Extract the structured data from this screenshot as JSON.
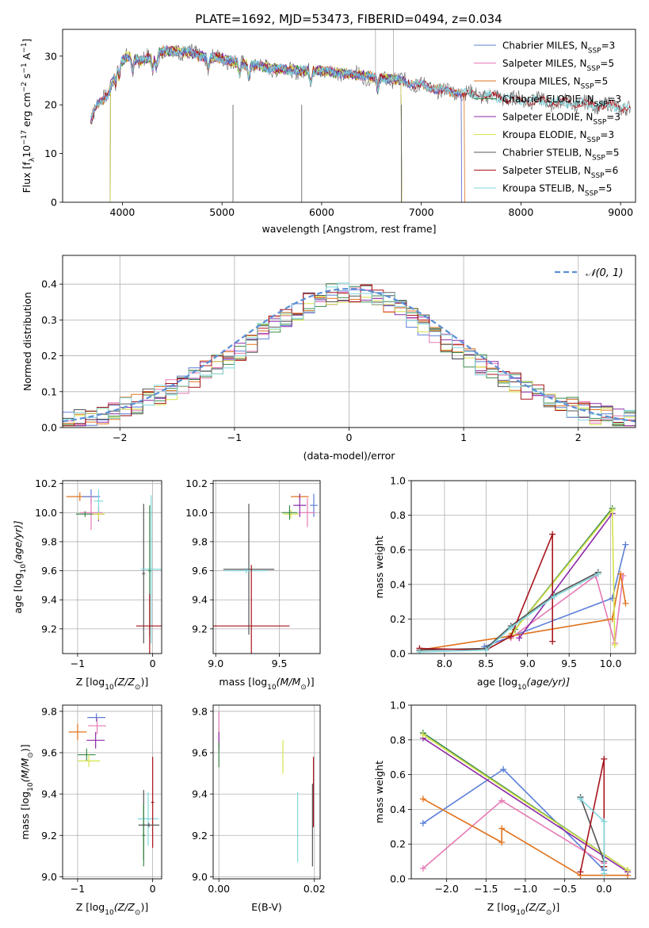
{
  "figure_title": "PLATE=1692, MJD=53473, FIBERID=0494, z=0.034",
  "colors": {
    "chabrier_miles": "#5b7fd6",
    "salpeter_miles": "#e67ab5",
    "kroupa_miles": "#e0721c",
    "chabrier_elodie": "#3a8a4a",
    "salpeter_elodie": "#8e2aa8",
    "kroupa_elodie": "#d6e24a",
    "chabrier_stelib": "#555555",
    "salpeter_stelib": "#a8141c",
    "kroupa_stelib": "#7fd6dc",
    "normal_curve": "#5b8fd6",
    "grid": "#b0b0b0"
  },
  "chart_data": [
    {
      "id": "spectrum",
      "type": "line",
      "title": "PLATE=1692, MJD=53473, FIBERID=0494, z=0.034",
      "xlabel": "wavelength [Angstrom, rest frame]",
      "ylabel_main": "Flux [f",
      "ylabel_sub": "λ",
      "ylabel_mid": "10",
      "ylabel_sup1": "−17",
      "ylabel_rest": " erg cm",
      "ylabel_sup2": "−2",
      "ylabel_s": " s",
      "ylabel_sup3": "−1",
      "ylabel_a": " A",
      "ylabel_sup4": "−1",
      "ylabel_end": "]",
      "xlim": [
        3400,
        9150
      ],
      "ylim": [
        0,
        35.5
      ],
      "xticks": [
        4000,
        5000,
        6000,
        7000,
        8000,
        9000
      ],
      "yticks": [
        0,
        10,
        20,
        30
      ],
      "grid": false,
      "legend_placement": "top-right",
      "legend": [
        {
          "pre": "Chabrier MILES, N",
          "sub": "SSP",
          "post": "=3",
          "color": "#5b7fd6"
        },
        {
          "pre": "Salpeter MILES, N",
          "sub": "SSP",
          "post": "=5",
          "color": "#e67ab5"
        },
        {
          "pre": "Kroupa MILES, N",
          "sub": "SSP",
          "post": "=5",
          "color": "#e0721c"
        },
        {
          "pre": "Chabrier ELODIE, N",
          "sub": "SSP",
          "post": "=3",
          "color": "#3a8a4a"
        },
        {
          "pre": "Salpeter ELODIE, N",
          "sub": "SSP",
          "post": "=3",
          "color": "#8e2aa8"
        },
        {
          "pre": "Kroupa ELODIE, N",
          "sub": "SSP",
          "post": "=3",
          "color": "#d6e24a"
        },
        {
          "pre": "Chabrier STELIB, N",
          "sub": "SSP",
          "post": "=5",
          "color": "#555555"
        },
        {
          "pre": "Salpeter STELIB, N",
          "sub": "SSP",
          "post": "=6",
          "color": "#a8141c"
        },
        {
          "pre": "Kroupa STELIB, N",
          "sub": "SSP",
          "post": "=5",
          "color": "#7fd6dc"
        }
      ],
      "continuum_points": [
        [
          3680,
          17
        ],
        [
          3750,
          20
        ],
        [
          3850,
          22
        ],
        [
          3950,
          28
        ],
        [
          4050,
          30
        ],
        [
          4200,
          29
        ],
        [
          4400,
          31
        ],
        [
          4600,
          31
        ],
        [
          4800,
          30
        ],
        [
          5000,
          29.5
        ],
        [
          5200,
          28.5
        ],
        [
          5500,
          27.5
        ],
        [
          5800,
          27
        ],
        [
          6000,
          27
        ],
        [
          6200,
          26.5
        ],
        [
          6500,
          25.8
        ],
        [
          6800,
          25
        ],
        [
          7000,
          24
        ],
        [
          7200,
          23
        ],
        [
          7400,
          22.5
        ],
        [
          7600,
          22
        ],
        [
          7800,
          21.5
        ],
        [
          8000,
          21
        ],
        [
          8200,
          20.8
        ],
        [
          8400,
          20.5
        ],
        [
          8600,
          20.2
        ],
        [
          8800,
          20
        ],
        [
          9000,
          19.5
        ],
        [
          9100,
          19.3
        ]
      ],
      "series_ranges": {
        "chabrier_miles": [
          3680,
          7400
        ],
        "salpeter_miles": [
          3680,
          7400
        ],
        "kroupa_miles": [
          3680,
          7430
        ],
        "chabrier_elodie": [
          3880,
          6800
        ],
        "salpeter_elodie": [
          3880,
          6800
        ],
        "kroupa_elodie": [
          3880,
          6800
        ],
        "chabrier_stelib": [
          3680,
          9100
        ],
        "salpeter_stelib": [
          3680,
          9100
        ],
        "kroupa_stelib": [
          3680,
          9100
        ]
      }
    },
    {
      "id": "residuals",
      "type": "histogram",
      "xlabel": "(data-model)/error",
      "ylabel": "Normed distribution",
      "xlim": [
        -2.5,
        2.5
      ],
      "ylim": [
        0,
        0.48
      ],
      "xticks": [
        -2,
        -1,
        0,
        1,
        2
      ],
      "yticks": [
        0.0,
        0.1,
        0.2,
        0.3,
        0.4
      ],
      "grid": true,
      "bin_width": 0.1,
      "legend_placement": "top-right",
      "legend": [
        {
          "label": "𝒩(0, 1)",
          "color": "#5b8fd6",
          "style": "dashed"
        }
      ],
      "normal_curve": {
        "mean": 0,
        "sigma": 1
      }
    },
    {
      "id": "age_vs_Z",
      "type": "errorbar",
      "xlabel_pre": "Z [log",
      "xlabel_sub": "10",
      "xlabel_post": "(Z/Z",
      "xlabel_end": ")]",
      "ylabel_pre": "age  [log",
      "ylabel_sub": "10",
      "ylabel_post": "(age/yr)]",
      "xlim": [
        -1.2,
        0.12
      ],
      "ylim": [
        9.03,
        10.22
      ],
      "xticks": [
        -1,
        0
      ],
      "yticks": [
        9.2,
        9.4,
        9.6,
        9.8,
        10.0,
        10.2
      ],
      "grid": true,
      "points": [
        {
          "series": "kroupa_miles",
          "x": -0.97,
          "xerr": 0.18,
          "y": 10.11,
          "yerr": 0.03
        },
        {
          "series": "chabrier_miles",
          "x": -0.82,
          "xerr": 0.12,
          "y": 10.11,
          "yerr": 0.05
        },
        {
          "series": "salpeter_miles",
          "x": -0.82,
          "xerr": 0.15,
          "y": 10.0,
          "yerr": 0.12
        },
        {
          "series": "chabrier_elodie",
          "x": -0.9,
          "xerr": 0.12,
          "y": 9.99,
          "yerr": 0.02
        },
        {
          "series": "salpeter_elodie",
          "x": -0.72,
          "xerr": 0.08,
          "y": 9.99,
          "yerr": 0.05
        },
        {
          "series": "kroupa_elodie",
          "x": -0.72,
          "xerr": 0.08,
          "y": 9.99,
          "yerr": 0.04
        },
        {
          "series": "kroupa_stelib",
          "x": -0.72,
          "xerr": 0.06,
          "y": 10.08,
          "yerr": 0.08
        },
        {
          "series": "chabrier_stelib",
          "x": -0.12,
          "xerr": 0.02,
          "y": 9.58,
          "yerr": 0.48
        },
        {
          "series": "kroupa_stelib",
          "x": -0.02,
          "xerr": 0.14,
          "y": 9.61,
          "yerr": 0.51
        },
        {
          "series": "chabrier_elodie",
          "x": -0.04,
          "xerr": 0.02,
          "y": 9.6,
          "yerr": 0.45
        },
        {
          "series": "salpeter_stelib",
          "x": -0.04,
          "xerr": 0.18,
          "y": 9.22,
          "yerr": 0.22
        }
      ]
    },
    {
      "id": "age_vs_mass",
      "type": "errorbar",
      "xlabel_pre": "mass [log",
      "xlabel_sub": "10",
      "xlabel_post": "(M/M",
      "xlabel_end": ")]",
      "xlim": [
        8.98,
        9.82
      ],
      "ylim": [
        9.03,
        10.22
      ],
      "xticks": [
        9.0,
        9.5
      ],
      "yticks": [
        9.2,
        9.4,
        9.6,
        9.8,
        10.0,
        10.2
      ],
      "grid": true,
      "points": [
        {
          "series": "chabrier_stelib",
          "x": 9.26,
          "xerr": 0.2,
          "y": 9.61,
          "yerr": 0.45
        },
        {
          "series": "kroupa_stelib",
          "x": 9.24,
          "xerr": 0.17,
          "y": 9.6,
          "yerr": 0.02
        },
        {
          "series": "salpeter_stelib",
          "x": 9.28,
          "xerr": 0.3,
          "y": 9.22,
          "yerr": 0.42
        },
        {
          "series": "kroupa_miles",
          "x": 9.66,
          "xerr": 0.07,
          "y": 10.11,
          "yerr": 0.02
        },
        {
          "series": "chabrier_miles",
          "x": 9.77,
          "xerr": 0.03,
          "y": 10.05,
          "yerr": 0.08
        },
        {
          "series": "salpeter_miles",
          "x": 9.72,
          "xerr": 0.06,
          "y": 10.0,
          "yerr": 0.1
        },
        {
          "series": "salpeter_elodie",
          "x": 9.66,
          "xerr": 0.05,
          "y": 10.05,
          "yerr": 0.08
        },
        {
          "series": "kroupa_elodie",
          "x": 9.59,
          "xerr": 0.06,
          "y": 9.99,
          "yerr": 0.03
        },
        {
          "series": "chabrier_elodie",
          "x": 9.58,
          "xerr": 0.06,
          "y": 10.0,
          "yerr": 0.05
        }
      ]
    },
    {
      "id": "weight_vs_age",
      "type": "line",
      "xlabel_pre": "age  [log",
      "xlabel_sub": "10",
      "xlabel_post": "(age/yr)]",
      "ylabel": "mass weight",
      "xlim": [
        7.6,
        10.3
      ],
      "ylim": [
        0,
        1.0
      ],
      "xticks": [
        8.0,
        8.5,
        9.0,
        9.5,
        10.0
      ],
      "yticks": [
        0.0,
        0.2,
        0.4,
        0.6,
        0.8,
        1.0
      ],
      "grid": true,
      "series": [
        {
          "name": "chabrier_miles",
          "x": [
            8.48,
            10.02,
            10.18
          ],
          "y": [
            0.04,
            0.32,
            0.63
          ]
        },
        {
          "name": "salpeter_miles",
          "x": [
            8.8,
            9.82,
            10.05,
            10.15
          ],
          "y": [
            0.09,
            0.45,
            0.06,
            0.45
          ]
        },
        {
          "name": "kroupa_miles",
          "x": [
            7.7,
            8.78,
            10.02,
            10.12,
            10.18
          ],
          "y": [
            0.02,
            0.1,
            0.2,
            0.46,
            0.29
          ]
        },
        {
          "name": "chabrier_elodie",
          "x": [
            8.85,
            10.02
          ],
          "y": [
            0.14,
            0.84
          ]
        },
        {
          "name": "salpeter_elodie",
          "x": [
            8.9,
            10.02
          ],
          "y": [
            0.09,
            0.81
          ]
        },
        {
          "name": "kroupa_elodie",
          "x": [
            8.82,
            10.02,
            10.05
          ],
          "y": [
            0.12,
            0.83,
            0.05
          ]
        },
        {
          "name": "chabrier_stelib",
          "x": [
            7.7,
            8.5,
            8.8,
            9.32,
            9.85
          ],
          "y": [
            0.02,
            0.03,
            0.16,
            0.34,
            0.47
          ]
        },
        {
          "name": "salpeter_stelib",
          "x": [
            7.7,
            8.5,
            8.8,
            9.3,
            9.3
          ],
          "y": [
            0.03,
            0.02,
            0.1,
            0.69,
            0.07
          ]
        },
        {
          "name": "kroupa_stelib",
          "x": [
            7.7,
            8.5,
            8.8,
            9.32,
            9.85
          ],
          "y": [
            0.01,
            0.02,
            0.15,
            0.33,
            0.46
          ]
        }
      ]
    },
    {
      "id": "mass_vs_Z",
      "type": "errorbar",
      "xlabel_pre": "Z [log",
      "xlabel_sub": "10",
      "xlabel_post": "(Z/Z",
      "xlabel_end": ")]",
      "ylabel_pre": "mass [log",
      "ylabel_sub": "10",
      "ylabel_post": "(M/M",
      "ylabel_end": ")]",
      "xlim": [
        -1.2,
        0.12
      ],
      "ylim": [
        8.99,
        9.83
      ],
      "xticks": [
        -1,
        0
      ],
      "yticks": [
        9.0,
        9.2,
        9.4,
        9.6,
        9.8
      ],
      "grid": true,
      "points": [
        {
          "series": "kroupa_miles",
          "x": -1.0,
          "xerr": 0.12,
          "y": 9.7,
          "yerr": 0.04
        },
        {
          "series": "chabrier_miles",
          "x": -0.75,
          "xerr": 0.12,
          "y": 9.77,
          "yerr": 0.02
        },
        {
          "series": "salpeter_miles",
          "x": -0.74,
          "xerr": 0.12,
          "y": 9.73,
          "yerr": 0.04
        },
        {
          "series": "salpeter_elodie",
          "x": -0.76,
          "xerr": 0.12,
          "y": 9.66,
          "yerr": 0.04
        },
        {
          "series": "chabrier_elodie",
          "x": -0.88,
          "xerr": 0.12,
          "y": 9.59,
          "yerr": 0.03
        },
        {
          "series": "kroupa_elodie",
          "x": -0.85,
          "xerr": 0.15,
          "y": 9.56,
          "yerr": 0.03
        },
        {
          "series": "chabrier_stelib",
          "x": -0.12,
          "xerr": 0.02,
          "y": 9.25,
          "yerr": 0.17
        },
        {
          "series": "kroupa_stelib",
          "x": -0.06,
          "xerr": 0.14,
          "y": 9.28,
          "yerr": 0.13
        },
        {
          "series": "chabrier_elodie",
          "x": -0.12,
          "xerr": 0.02,
          "y": 9.2,
          "yerr": 0.15
        },
        {
          "series": "salpeter_stelib",
          "x": 0.0,
          "xerr": 0.02,
          "y": 9.36,
          "yerr": 0.22
        },
        {
          "series": "chabrier_stelib",
          "x": -0.05,
          "xerr": 0.14,
          "y": 9.25,
          "yerr": 0.01
        }
      ]
    },
    {
      "id": "mass_vs_ebv",
      "type": "errorbar",
      "xlabel": "E(B-V)",
      "xlim": [
        -0.0012,
        0.0212
      ],
      "ylim": [
        8.99,
        9.83
      ],
      "xticks": [
        0.0,
        0.02
      ],
      "xtick_labels": [
        "0.00",
        "0.02"
      ],
      "yticks": [
        9.0,
        9.2,
        9.4,
        9.6,
        9.8
      ],
      "grid": true,
      "points": [
        {
          "series": "salpeter_miles",
          "x": 0.0,
          "y": 9.7,
          "yerr": 0.1
        },
        {
          "series": "salpeter_elodie",
          "x": 0.0,
          "y": 9.66,
          "yerr": 0.04
        },
        {
          "series": "chabrier_elodie",
          "x": 0.0,
          "y": 9.59,
          "yerr": 0.06
        },
        {
          "series": "kroupa_elodie",
          "x": 0.0134,
          "y": 9.58,
          "yerr": 0.08
        },
        {
          "series": "kroupa_stelib",
          "x": 0.0165,
          "y": 9.24,
          "yerr": 0.17
        },
        {
          "series": "salpeter_stelib",
          "x": 0.0198,
          "y": 9.41,
          "yerr": 0.17
        },
        {
          "series": "chabrier_stelib",
          "x": 0.0196,
          "y": 9.25,
          "yerr": 0.2
        }
      ]
    },
    {
      "id": "weight_vs_Z",
      "type": "line",
      "xlabel_pre": "Z [log",
      "xlabel_sub": "10",
      "xlabel_post": "(Z/Z",
      "xlabel_end": ")]",
      "ylabel": "mass weight",
      "xlim": [
        -2.45,
        0.4
      ],
      "ylim": [
        0,
        1.0
      ],
      "xticks": [
        -2.0,
        -1.5,
        -1.0,
        -0.5,
        0.0
      ],
      "yticks": [
        0.0,
        0.2,
        0.4,
        0.6,
        0.8,
        1.0
      ],
      "grid": true,
      "series": [
        {
          "name": "chabrier_miles",
          "x": [
            -2.3,
            -1.28,
            0.0
          ],
          "y": [
            0.32,
            0.63,
            0.05
          ]
        },
        {
          "name": "salpeter_miles",
          "x": [
            -2.3,
            -1.3,
            0.0
          ],
          "y": [
            0.06,
            0.45,
            0.09
          ]
        },
        {
          "name": "kroupa_miles",
          "x": [
            -2.3,
            -1.3,
            -1.3,
            -0.3,
            0.3
          ],
          "y": [
            0.46,
            0.21,
            0.29,
            0.02,
            0.02
          ]
        },
        {
          "name": "chabrier_elodie",
          "x": [
            -2.3,
            0.3
          ],
          "y": [
            0.84,
            0.05
          ]
        },
        {
          "name": "salpeter_elodie",
          "x": [
            -2.3,
            0.3
          ],
          "y": [
            0.81,
            0.04
          ]
        },
        {
          "name": "kroupa_elodie",
          "x": [
            -2.3,
            0.3
          ],
          "y": [
            0.83,
            0.05
          ]
        },
        {
          "name": "chabrier_stelib",
          "x": [
            -0.3,
            0.0
          ],
          "y": [
            0.47,
            0.1
          ]
        },
        {
          "name": "salpeter_stelib",
          "x": [
            -0.3,
            0.0,
            0.0
          ],
          "y": [
            0.04,
            0.69,
            0.07
          ]
        },
        {
          "name": "kroupa_stelib",
          "x": [
            -0.3,
            0.0,
            0.0
          ],
          "y": [
            0.46,
            0.33,
            0.03
          ]
        }
      ]
    }
  ]
}
